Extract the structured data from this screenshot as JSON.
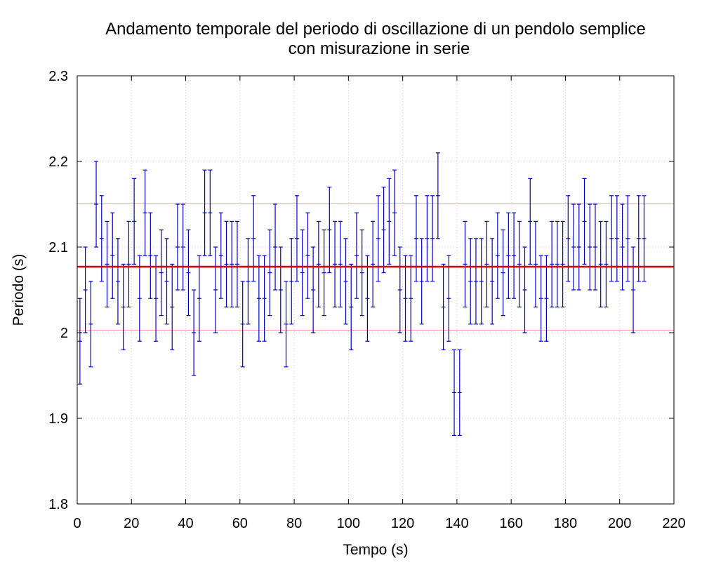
{
  "chart_data": {
    "type": "scatter",
    "title": "Andamento temporale del periodo di oscillazione di un pendolo semplice",
    "subtitle": "con misurazione in serie",
    "xlabel": "Tempo (s)",
    "ylabel": "Periodo (s)",
    "xlim": [
      0,
      220
    ],
    "ylim": [
      1.8,
      2.3
    ],
    "xticks": [
      "0",
      "20",
      "40",
      "60",
      "80",
      "100",
      "120",
      "140",
      "160",
      "180",
      "200",
      "220"
    ],
    "yticks": [
      "1.8",
      "1.9",
      "2",
      "2.1",
      "2.2",
      "2.3"
    ],
    "grid": true,
    "error": 0.05,
    "mean": 2.077,
    "band": [
      2.003,
      2.151
    ],
    "x": [
      1,
      3,
      5,
      7,
      9,
      11,
      13,
      15,
      17,
      19,
      21,
      23,
      25,
      27,
      29,
      31,
      33,
      35,
      37,
      39,
      41,
      43,
      45,
      47,
      49,
      51,
      53,
      55,
      57,
      59,
      61,
      63,
      65,
      67,
      69,
      71,
      73,
      75,
      77,
      79,
      81,
      83,
      85,
      87,
      89,
      91,
      93,
      95,
      97,
      99,
      101,
      103,
      105,
      107,
      109,
      111,
      113,
      115,
      117,
      119,
      121,
      123,
      125,
      127,
      129,
      131,
      133,
      135,
      137,
      139,
      141,
      143,
      145,
      147,
      149,
      151,
      153,
      155,
      157,
      159,
      161,
      163,
      165,
      167,
      169,
      171,
      173,
      175,
      177,
      179,
      181,
      183,
      185,
      187,
      189,
      191,
      193,
      195,
      197,
      199,
      201,
      203,
      205,
      207,
      209
    ],
    "values": [
      1.99,
      2.05,
      2.01,
      2.15,
      2.11,
      2.08,
      2.09,
      2.06,
      2.03,
      2.08,
      2.13,
      2.04,
      2.14,
      2.09,
      2.04,
      2.07,
      2.06,
      2.03,
      2.1,
      2.1,
      2.07,
      2.0,
      2.04,
      2.14,
      2.14,
      2.05,
      2.09,
      2.08,
      2.08,
      2.08,
      2.01,
      2.06,
      2.11,
      2.04,
      2.04,
      2.07,
      2.1,
      2.05,
      2.01,
      2.06,
      2.11,
      2.07,
      2.09,
      2.05,
      2.08,
      2.07,
      2.12,
      2.08,
      2.08,
      2.06,
      2.03,
      2.09,
      2.07,
      2.04,
      2.08,
      2.11,
      2.12,
      2.13,
      2.14,
      2.05,
      2.04,
      2.04,
      2.11,
      2.06,
      2.11,
      2.11,
      2.16,
      2.03,
      2.04,
      1.93,
      1.93,
      2.08,
      2.06,
      2.06,
      2.06,
      2.08,
      2.06,
      2.09,
      2.07,
      2.09,
      2.09,
      2.08,
      2.05,
      2.13,
      2.08,
      2.04,
      2.04,
      2.08,
      2.08,
      2.08,
      2.11,
      2.1,
      2.1,
      2.13,
      2.1,
      2.1,
      2.08,
      2.08,
      2.11,
      2.11,
      2.1,
      2.11,
      2.05,
      2.11,
      2.11
    ]
  }
}
